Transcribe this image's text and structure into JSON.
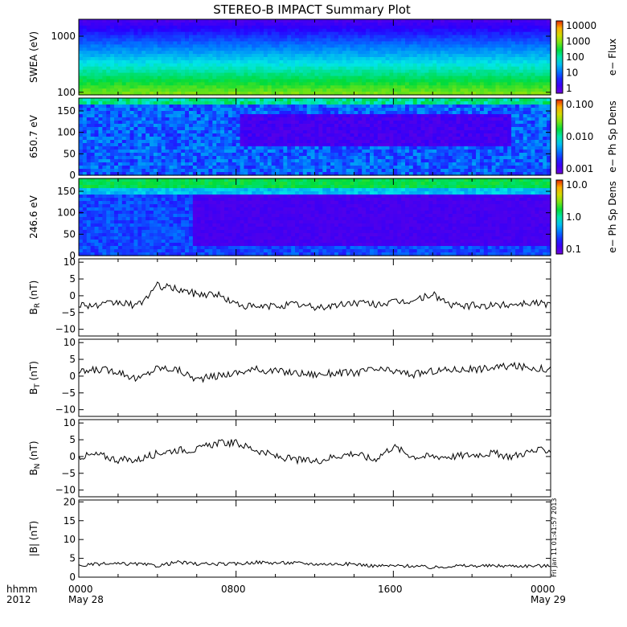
{
  "title": "STEREO-B IMPACT Summary Plot",
  "time_axis": {
    "row1_labels": [
      "0000",
      "0800",
      "1600",
      "0000"
    ],
    "row2_labels": [
      "May 28",
      "",
      "",
      "May 29"
    ],
    "left_top": "hhmm",
    "left_bottom": "2012"
  },
  "stamp": "Fri Jan 11 01:41:57 2013",
  "colors": {
    "trace": "#000000",
    "frame": "#000000",
    "background": "#ffffff"
  },
  "chart_data": [
    {
      "type": "heatmap",
      "ylabel": "SWEA (eV)",
      "ylim": [
        90,
        2000
      ],
      "y_scale": "log",
      "y_ticks": [
        "1000",
        "100"
      ],
      "y_tick_values": [
        1000,
        100
      ],
      "colorbar": {
        "label": "e− Flux",
        "ticks": [
          "10000",
          "1000",
          "100",
          "10",
          "1"
        ],
        "scale": "log",
        "range": [
          1,
          10000
        ]
      },
      "profile": [
        {
          "energy_eV": 100,
          "level": 0.72
        },
        {
          "energy_eV": 200,
          "level": 0.62
        },
        {
          "energy_eV": 400,
          "level": 0.5
        },
        {
          "energy_eV": 600,
          "level": 0.42
        },
        {
          "energy_eV": 1000,
          "level": 0.28
        },
        {
          "energy_eV": 2000,
          "level": 0.12
        }
      ]
    },
    {
      "type": "heatmap",
      "ylabel": "650.7 eV",
      "ylim": [
        0,
        180
      ],
      "y_ticks": [
        "150",
        "100",
        "50",
        "0"
      ],
      "y_tick_values": [
        150,
        100,
        50,
        0
      ],
      "colorbar": {
        "label": "e− Ph Sp Dens",
        "ticks": [
          "0.100",
          "0.010",
          "0.001"
        ],
        "scale": "log",
        "range": [
          0.001,
          0.1
        ]
      }
    },
    {
      "type": "heatmap",
      "ylabel": "246.6 eV",
      "ylim": [
        0,
        180
      ],
      "y_ticks": [
        "150",
        "100",
        "50",
        "0"
      ],
      "y_tick_values": [
        150,
        100,
        50,
        0
      ],
      "colorbar": {
        "label": "e− Ph Sp Dens",
        "ticks": [
          "10.0",
          "1.0",
          "0.1"
        ],
        "scale": "log",
        "range": [
          0.1,
          10
        ]
      }
    },
    {
      "type": "line",
      "ylabel_main": "B",
      "ylabel_sub": "R",
      "ylabel_tail": " (nT)",
      "ylim": [
        -12,
        11
      ],
      "y_ticks": [
        "10",
        "5",
        "0",
        "−5",
        "−10"
      ],
      "y_tick_values": [
        10,
        5,
        0,
        -5,
        -10
      ],
      "x_hours": [
        0,
        1,
        2,
        3,
        4,
        5,
        6,
        7,
        8,
        9,
        10,
        11,
        12,
        13,
        14,
        15,
        16,
        17,
        18,
        19,
        20,
        21,
        22,
        23,
        24
      ],
      "values": [
        -2.5,
        -3,
        -2,
        -3,
        3,
        2,
        0.5,
        0.5,
        -2.5,
        -3.5,
        -3,
        -2.5,
        -3.5,
        -3,
        -2,
        -2.5,
        -2,
        -1.5,
        0.5,
        -3,
        -3,
        -3,
        -2.5,
        -2,
        -2.5
      ]
    },
    {
      "type": "line",
      "ylabel_main": "B",
      "ylabel_sub": "T",
      "ylabel_tail": " (nT)",
      "ylim": [
        -12,
        11
      ],
      "y_ticks": [
        "10",
        "5",
        "0",
        "−5",
        "−10"
      ],
      "y_tick_values": [
        10,
        5,
        0,
        -5,
        -10
      ],
      "x_hours": [
        0,
        1,
        2,
        3,
        4,
        5,
        6,
        7,
        8,
        9,
        10,
        11,
        12,
        13,
        14,
        15,
        16,
        17,
        18,
        19,
        20,
        21,
        22,
        23,
        24
      ],
      "values": [
        1,
        2,
        1.5,
        -1,
        2.5,
        2,
        -1,
        0,
        1,
        2,
        1.5,
        1,
        0.5,
        1,
        1,
        2,
        1.5,
        0.5,
        1.5,
        2,
        2,
        2.5,
        3,
        2.5,
        2
      ]
    },
    {
      "type": "line",
      "ylabel_main": "B",
      "ylabel_sub": "N",
      "ylabel_tail": " (nT)",
      "ylim": [
        -12,
        11
      ],
      "y_ticks": [
        "10",
        "5",
        "0",
        "−5",
        "−10"
      ],
      "y_tick_values": [
        10,
        5,
        0,
        -5,
        -10
      ],
      "x_hours": [
        0,
        1,
        2,
        3,
        4,
        5,
        6,
        7,
        8,
        9,
        10,
        11,
        12,
        13,
        14,
        15,
        16,
        17,
        18,
        19,
        20,
        21,
        22,
        23,
        24
      ],
      "values": [
        0,
        0.5,
        -1,
        -1,
        1,
        2,
        2,
        4,
        4,
        2,
        0,
        -1,
        -1.5,
        0,
        1,
        -1,
        3,
        0,
        0,
        0,
        0.5,
        1,
        0,
        1.5,
        2
      ]
    },
    {
      "type": "line",
      "ylabel": "|B| (nT)",
      "ylim": [
        0,
        20.5
      ],
      "y_ticks": [
        "20",
        "15",
        "10",
        "5",
        "0"
      ],
      "y_tick_values": [
        20,
        15,
        10,
        5,
        0
      ],
      "x_hours": [
        0,
        1,
        2,
        3,
        4,
        5,
        6,
        7,
        8,
        9,
        10,
        11,
        12,
        13,
        14,
        15,
        16,
        17,
        18,
        19,
        20,
        21,
        22,
        23,
        24
      ],
      "values": [
        3,
        3.5,
        3.5,
        3.5,
        3,
        4,
        3.5,
        3.5,
        3.5,
        4,
        3.8,
        3.8,
        3.5,
        3.5,
        3.5,
        3,
        3,
        3,
        2.5,
        3,
        3,
        3,
        3,
        3,
        3
      ]
    }
  ]
}
